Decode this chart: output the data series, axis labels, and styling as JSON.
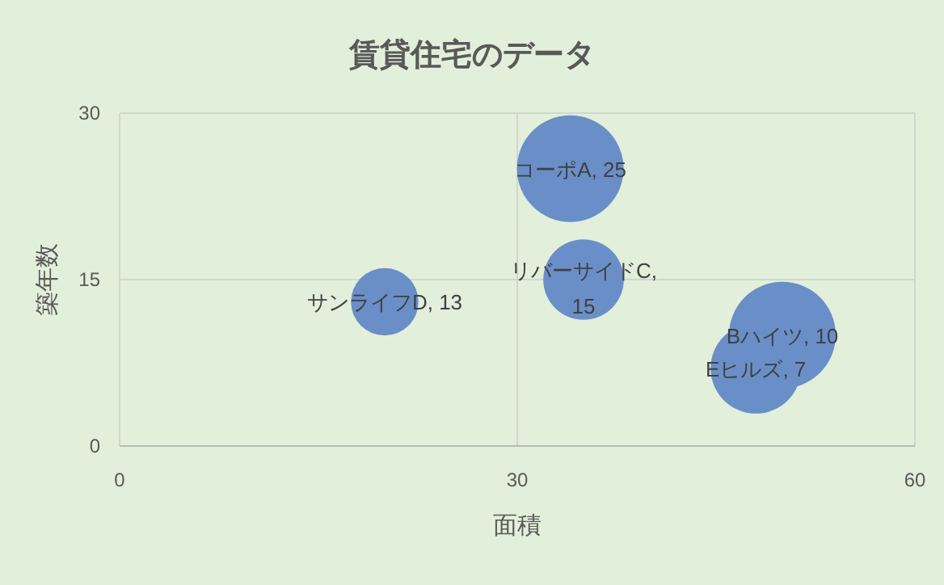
{
  "chart_data": {
    "type": "bubble",
    "title": "賃貸住宅のデータ",
    "xlabel": "面積",
    "ylabel": "築年数",
    "x": [
      34,
      50,
      35,
      20,
      48
    ],
    "values": [
      25,
      10,
      15,
      13,
      7
    ],
    "sizes": [
      1,
      1,
      0.57,
      0.4,
      0.72
    ],
    "value_labels": [
      "コーポA, 25",
      "Bハイツ, 10",
      "リバーサイドC, 15",
      "サンライフD, 13",
      "Eヒルズ, 7"
    ],
    "color": "#6a8fc8",
    "xlim": [
      0,
      60
    ],
    "xticks": [
      0,
      30,
      60
    ],
    "ylim": [
      0,
      30
    ],
    "yticks": [
      0,
      15,
      30
    ],
    "grid": true
  }
}
